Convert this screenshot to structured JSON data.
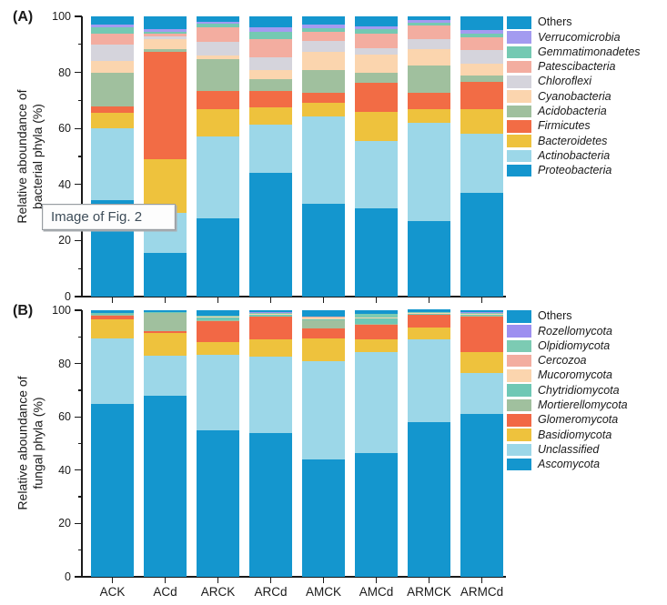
{
  "figure": {
    "tooltip_text": "Image of Fig. 2",
    "panel_a_label": "(A)",
    "panel_b_label": "(B)"
  },
  "chart_data": [
    {
      "type": "bar",
      "stacked": true,
      "panel_label": "(A)",
      "ylabel_lines": [
        "Relative aboundance of",
        "bacterial phyla (%)"
      ],
      "ylim": [
        0,
        100
      ],
      "yticks_major": [
        0,
        20,
        40,
        60,
        80,
        100
      ],
      "yticks_minor": [
        10,
        30,
        50,
        70,
        90
      ],
      "show_x_tick_labels": false,
      "legend_position": "right",
      "categories": [
        "ACK",
        "ACd",
        "ARCK",
        "ARCd",
        "AMCK",
        "AMCd",
        "ARMCK",
        "ARMCd"
      ],
      "series": [
        {
          "name": "Proteobacteria",
          "color": "#1496CE",
          "italic": true,
          "values": [
            34.5,
            15.5,
            28.0,
            44.0,
            33.0,
            31.5,
            27.0,
            37.0
          ]
        },
        {
          "name": "Actinobacteria",
          "color": "#9CD7E8",
          "italic": true,
          "values": [
            25.5,
            14.5,
            29.0,
            17.5,
            31.3,
            24.0,
            35.0,
            21.0
          ]
        },
        {
          "name": "Bacteroidetes",
          "color": "#EEC23D",
          "italic": true,
          "values": [
            5.5,
            19.0,
            10.0,
            6.2,
            5.0,
            10.5,
            5.0,
            9.0
          ]
        },
        {
          "name": "Firmicutes",
          "color": "#F26C45",
          "italic": true,
          "values": [
            2.5,
            38.5,
            6.5,
            5.7,
            3.6,
            10.4,
            5.8,
            9.5
          ]
        },
        {
          "name": "Acidobacteria",
          "color": "#A0C09E",
          "italic": true,
          "values": [
            12.0,
            0.8,
            11.3,
            4.3,
            8.0,
            3.5,
            9.6,
            2.5
          ]
        },
        {
          "name": "Cyanobacteria",
          "color": "#FBD5AE",
          "italic": true,
          "values": [
            4.0,
            3.5,
            1.3,
            3.2,
            6.5,
            6.4,
            5.8,
            4.0
          ]
        },
        {
          "name": "Chloroflexi",
          "color": "#D5D4DC",
          "italic": true,
          "values": [
            6.0,
            1.0,
            4.9,
            4.4,
            3.7,
            2.4,
            3.7,
            4.9
          ]
        },
        {
          "name": "Patescibacteria",
          "color": "#F3ADA0",
          "italic": true,
          "values": [
            4.0,
            1.0,
            5.1,
            6.5,
            3.5,
            5.2,
            5.0,
            4.5
          ]
        },
        {
          "name": "Gemmatimonadetes",
          "color": "#74C9B2",
          "italic": true,
          "values": [
            2.2,
            0.8,
            1.3,
            2.8,
            1.3,
            1.5,
            1.0,
            1.6
          ]
        },
        {
          "name": "Verrucomicrobia",
          "color": "#A39BF0",
          "italic": true,
          "values": [
            0.8,
            1.0,
            0.6,
            1.5,
            1.1,
            0.9,
            0.7,
            1.0
          ]
        },
        {
          "name": "Others",
          "color": "#1496CE",
          "italic": false,
          "values": [
            3.0,
            4.4,
            2.0,
            3.9,
            3.0,
            3.7,
            1.4,
            5.0
          ]
        }
      ]
    },
    {
      "type": "bar",
      "stacked": true,
      "panel_label": "(B)",
      "ylabel_lines": [
        "Relative aboundance of",
        "fungal phyla (%)"
      ],
      "ylim": [
        0,
        100
      ],
      "yticks_major": [
        0,
        20,
        40,
        60,
        80,
        100
      ],
      "yticks_minor": [
        10,
        30,
        50,
        70,
        90
      ],
      "show_x_tick_labels": true,
      "legend_position": "right",
      "categories": [
        "ACK",
        "ACd",
        "ARCK",
        "ARCd",
        "AMCK",
        "AMCd",
        "ARMCK",
        "ARMCd"
      ],
      "series": [
        {
          "name": "Ascomycota",
          "color": "#1496CE",
          "italic": true,
          "values": [
            65.0,
            68.0,
            55.0,
            54.0,
            44.0,
            46.5,
            58.0,
            61.0
          ]
        },
        {
          "name": "Unclassified",
          "color": "#9CD7E8",
          "italic": true,
          "values": [
            24.5,
            15.0,
            28.3,
            28.6,
            37.0,
            37.9,
            31.2,
            15.6
          ]
        },
        {
          "name": "Basidiomycota",
          "color": "#EEC23D",
          "italic": true,
          "values": [
            7.0,
            8.5,
            4.6,
            6.4,
            8.6,
            4.6,
            4.2,
            7.8
          ]
        },
        {
          "name": "Glomeromycota",
          "color": "#F26845",
          "italic": true,
          "values": [
            1.5,
            0.7,
            8.0,
            8.5,
            3.6,
            5.7,
            4.8,
            13.1
          ]
        },
        {
          "name": "Mortierellomycota",
          "color": "#A0C09E",
          "italic": true,
          "values": [
            0.3,
            6.8,
            0.4,
            0.2,
            3.0,
            0.3,
            0.2,
            0.3
          ]
        },
        {
          "name": "Chytridiomycota",
          "color": "#6FC8B5",
          "italic": true,
          "values": [
            0.7,
            0.2,
            1.0,
            0.6,
            0.3,
            2.0,
            0.3,
            0.4
          ]
        },
        {
          "name": "Mucoromycota",
          "color": "#FBD5AE",
          "italic": true,
          "values": [
            0.0,
            0.0,
            0.2,
            0.2,
            0.8,
            0.2,
            0.2,
            0.3
          ]
        },
        {
          "name": "Cercozoa",
          "color": "#F3ADA0",
          "italic": true,
          "values": [
            0.0,
            0.0,
            0.0,
            0.3,
            0.2,
            0.2,
            0.2,
            0.2
          ]
        },
        {
          "name": "Olpidiomycota",
          "color": "#7CCBB3",
          "italic": true,
          "values": [
            0.0,
            0.0,
            0.5,
            0.3,
            0.2,
            1.2,
            0.2,
            0.3
          ]
        },
        {
          "name": "Rozellomycota",
          "color": "#9D8FF0",
          "italic": true,
          "values": [
            0.0,
            0.0,
            0.0,
            0.2,
            0.0,
            0.2,
            0.0,
            0.2
          ]
        },
        {
          "name": "Others",
          "color": "#1496CE",
          "italic": false,
          "values": [
            1.0,
            0.8,
            2.0,
            0.7,
            2.3,
            1.2,
            0.9,
            0.8
          ]
        }
      ]
    }
  ]
}
